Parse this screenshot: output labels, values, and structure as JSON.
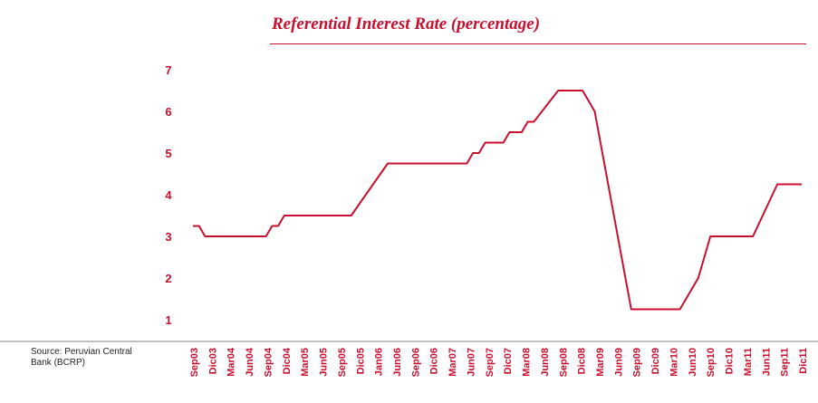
{
  "title": "Referential Interest Rate (percentage)",
  "source": "Source: Peruvian Central Bank (BCRP)",
  "colors": {
    "accent": "#c8102e",
    "text": "#222222"
  },
  "chart_data": {
    "type": "line",
    "title": "Referential Interest Rate (percentage)",
    "xlabel": "",
    "ylabel": "",
    "ylim": [
      1,
      7
    ],
    "yticks": [
      1,
      2,
      3,
      4,
      5,
      6,
      7
    ],
    "x_tick_labels": [
      "Sep03",
      "Dic03",
      "Mar04",
      "Jun04",
      "Sep04",
      "Dic04",
      "Mar05",
      "Jun05",
      "Sep05",
      "Dic05",
      "Jan06",
      "Jun06",
      "Sep06",
      "Dic06",
      "Mar07",
      "Jun07",
      "Sep07",
      "Dic07",
      "Mar08",
      "Jun08",
      "Sep08",
      "Dic08",
      "Mar09",
      "Jun09",
      "Sep09",
      "Dic09",
      "Mar10",
      "Jun10",
      "Sep10",
      "Dic10",
      "Mar11",
      "Jun11",
      "Sep11",
      "Dic11"
    ],
    "grid": false,
    "legend": "none",
    "series": [
      {
        "points": [
          {
            "x": "2003-09",
            "y": 3.25
          },
          {
            "x": "2003-10",
            "y": 3.25
          },
          {
            "x": "2003-11",
            "y": 3.0
          },
          {
            "x": "2004-09",
            "y": 3.0
          },
          {
            "x": "2004-10",
            "y": 3.25
          },
          {
            "x": "2004-11",
            "y": 3.25
          },
          {
            "x": "2004-12",
            "y": 3.5
          },
          {
            "x": "2005-11",
            "y": 3.5
          },
          {
            "x": "2006-05",
            "y": 4.75
          },
          {
            "x": "2007-06",
            "y": 4.75
          },
          {
            "x": "2007-07",
            "y": 5.0
          },
          {
            "x": "2007-08",
            "y": 5.0
          },
          {
            "x": "2007-09",
            "y": 5.25
          },
          {
            "x": "2007-12",
            "y": 5.25
          },
          {
            "x": "2008-01",
            "y": 5.5
          },
          {
            "x": "2008-03",
            "y": 5.5
          },
          {
            "x": "2008-04",
            "y": 5.75
          },
          {
            "x": "2008-05",
            "y": 5.75
          },
          {
            "x": "2008-09",
            "y": 6.5
          },
          {
            "x": "2009-01",
            "y": 6.5
          },
          {
            "x": "2009-03",
            "y": 6.0
          },
          {
            "x": "2009-09",
            "y": 1.25
          },
          {
            "x": "2010-05",
            "y": 1.25
          },
          {
            "x": "2010-08",
            "y": 2.0
          },
          {
            "x": "2010-10",
            "y": 3.0
          },
          {
            "x": "2011-05",
            "y": 3.0
          },
          {
            "x": "2011-09",
            "y": 4.25
          },
          {
            "x": "2012-01",
            "y": 4.25
          }
        ]
      }
    ]
  }
}
